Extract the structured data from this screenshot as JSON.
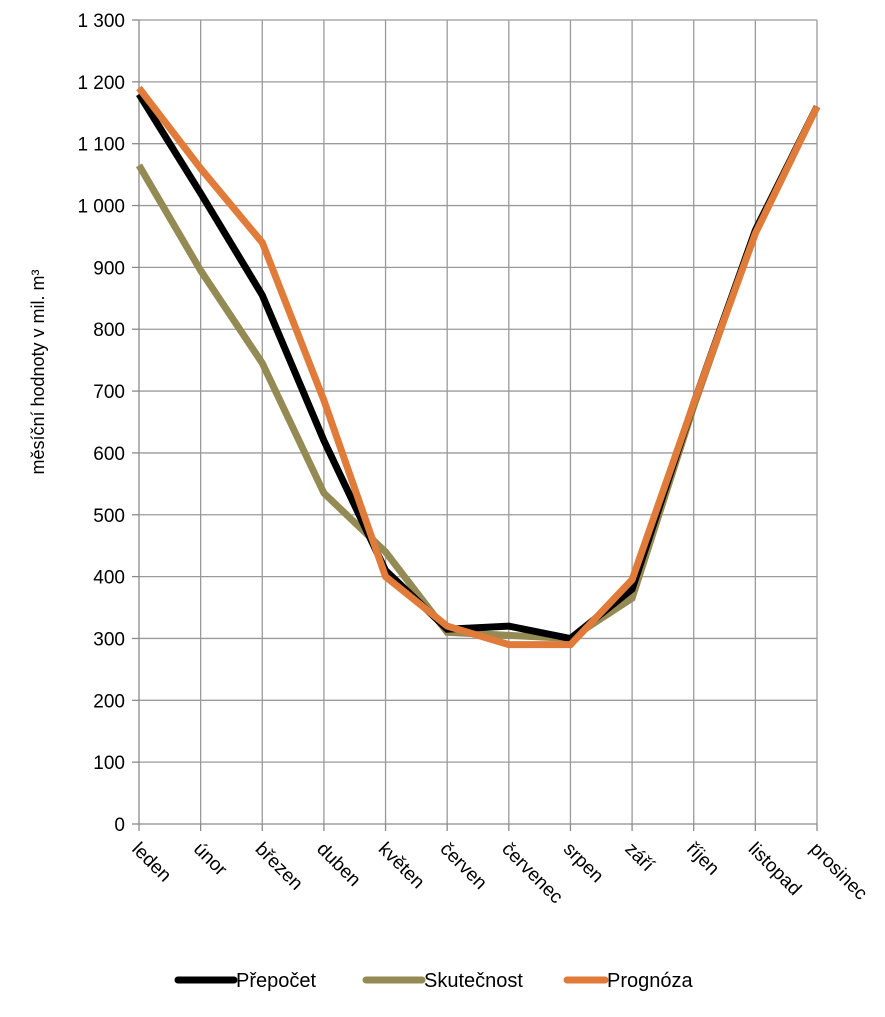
{
  "chart_data": {
    "type": "line",
    "ylabel": "měsíční hodnoty v mil. m³",
    "xlabel": "",
    "title": "",
    "ylim": [
      0,
      1300
    ],
    "y_step": 100,
    "y_tick_labels": [
      "0",
      "100",
      "200",
      "300",
      "400",
      "500",
      "600",
      "700",
      "800",
      "900",
      "1 000",
      "1 100",
      "1 200",
      "1 300"
    ],
    "categories": [
      "leden",
      "únor",
      "březen",
      "duben",
      "květen",
      "červen",
      "červenec",
      "srpen",
      "září",
      "říjen",
      "listopad",
      "prosinec"
    ],
    "grid": true,
    "legend_position": "bottom",
    "series": [
      {
        "name": "Přepočet",
        "color": "#000000",
        "values": [
          1180,
          1020,
          855,
          620,
          410,
          315,
          320,
          300,
          380,
          680,
          960,
          1160
        ]
      },
      {
        "name": "Skutečnost",
        "color": "#948A54",
        "values": [
          1065,
          895,
          745,
          535,
          440,
          310,
          305,
          300,
          365,
          675,
          960,
          1160
        ]
      },
      {
        "name": "Prognóza",
        "color": "#E07B39",
        "values": [
          1190,
          1060,
          940,
          685,
          400,
          320,
          290,
          290,
          395,
          680,
          955,
          1160
        ]
      }
    ]
  }
}
